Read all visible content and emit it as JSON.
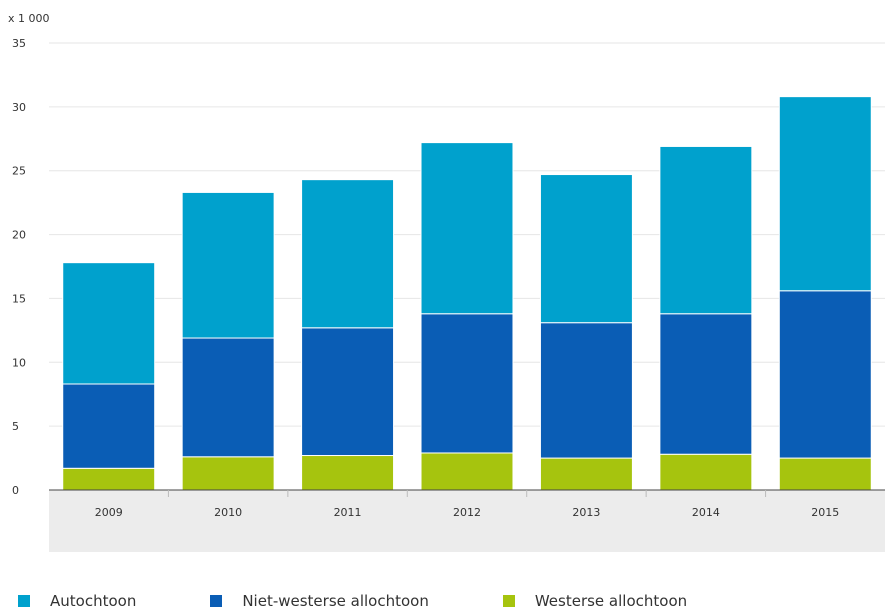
{
  "chart_data": {
    "type": "bar",
    "stacked": true,
    "unit_label": "x 1 000",
    "categories": [
      "2009",
      "2010",
      "2011",
      "2012",
      "2013",
      "2014",
      "2015"
    ],
    "series": [
      {
        "name": "Westerse allochtoon",
        "color": "#a6c40e",
        "values": [
          1.7,
          2.6,
          2.7,
          2.9,
          2.5,
          2.8,
          2.5
        ]
      },
      {
        "name": "Niet-westerse allochtoon",
        "color": "#0a5db5",
        "values": [
          6.6,
          9.3,
          10.0,
          10.9,
          10.6,
          11.0,
          13.1
        ]
      },
      {
        "name": "Autochtoon",
        "color": "#00a1cd",
        "values": [
          9.5,
          11.4,
          11.6,
          13.4,
          11.6,
          13.1,
          15.2
        ]
      }
    ],
    "ylim": [
      0,
      35
    ],
    "yticks": [
      0,
      5,
      10,
      15,
      20,
      25,
      30,
      35
    ],
    "grid": true,
    "legend_position": "bottom"
  },
  "legend": [
    {
      "label": "Autochtoon",
      "color": "#00a1cd"
    },
    {
      "label": "Niet-westerse allochtoon",
      "color": "#0a5db5"
    },
    {
      "label": "Westerse allochtoon",
      "color": "#a6c40e"
    }
  ]
}
